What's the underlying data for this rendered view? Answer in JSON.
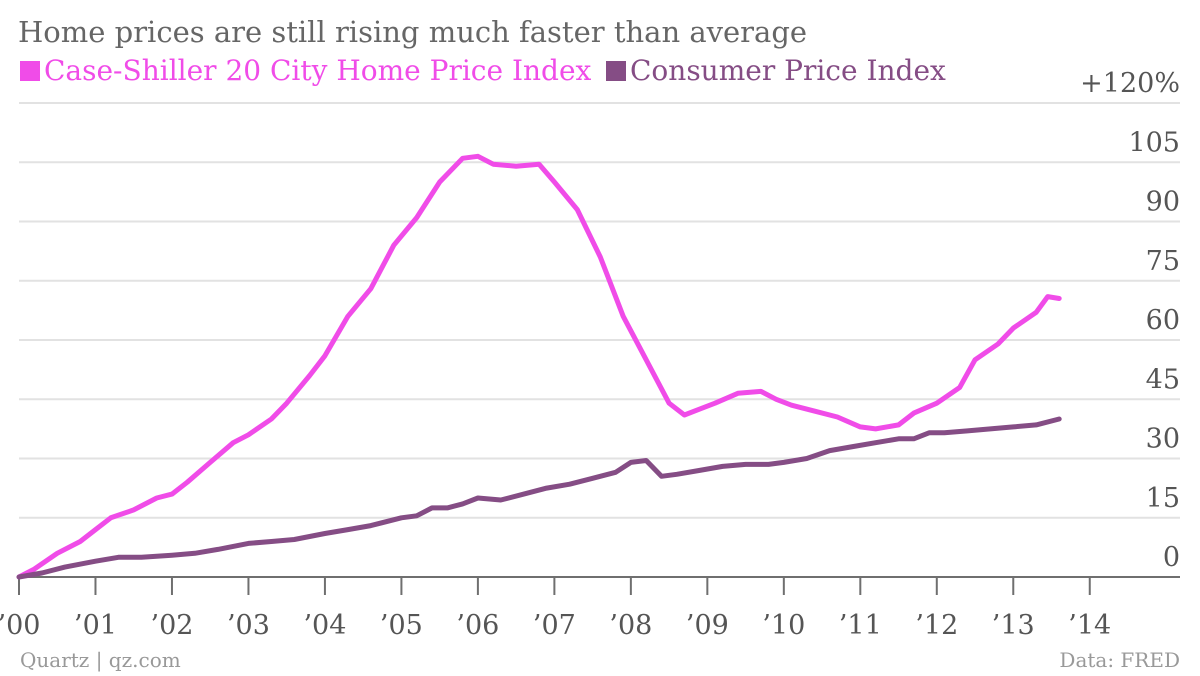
{
  "chart_data": {
    "type": "line",
    "title": "Home prices are still rising much faster than average",
    "source_left": "Quartz | qz.com",
    "source_right": "Data: FRED",
    "ylim": [
      0,
      120
    ],
    "y_ticks": [
      0,
      15,
      30,
      45,
      60,
      75,
      90,
      105,
      120
    ],
    "y_tick_labels": [
      "0",
      "15",
      "30",
      "45",
      "60",
      "75",
      "90",
      "105",
      "+120%"
    ],
    "x_ticks": [
      2000,
      2001,
      2002,
      2003,
      2004,
      2005,
      2006,
      2007,
      2008,
      2009,
      2010,
      2011,
      2012,
      2013,
      2014
    ],
    "x_tick_labels": [
      "’00",
      "’01",
      "’02",
      "’03",
      "’04",
      "’05",
      "’06",
      "’07",
      "’08",
      "’09",
      "’10",
      "’11",
      "’12",
      "’13",
      "’14"
    ],
    "xlim": [
      2000,
      2014.5
    ],
    "grid": true,
    "legend_position": "top-left",
    "series": [
      {
        "name": "Case-Shiller 20 City Home Price Index",
        "color": "#f04ce8",
        "points": [
          [
            2000.0,
            0
          ],
          [
            2000.2,
            2
          ],
          [
            2000.5,
            6
          ],
          [
            2000.8,
            9
          ],
          [
            2001.0,
            12
          ],
          [
            2001.2,
            15
          ],
          [
            2001.5,
            17
          ],
          [
            2001.8,
            20
          ],
          [
            2002.0,
            21
          ],
          [
            2002.2,
            24
          ],
          [
            2002.5,
            29
          ],
          [
            2002.8,
            34
          ],
          [
            2003.0,
            36
          ],
          [
            2003.3,
            40
          ],
          [
            2003.5,
            44
          ],
          [
            2003.8,
            51
          ],
          [
            2004.0,
            56
          ],
          [
            2004.3,
            66
          ],
          [
            2004.6,
            73
          ],
          [
            2004.9,
            84
          ],
          [
            2005.2,
            91
          ],
          [
            2005.5,
            100
          ],
          [
            2005.8,
            106
          ],
          [
            2006.0,
            106.5
          ],
          [
            2006.2,
            104.5
          ],
          [
            2006.5,
            104
          ],
          [
            2006.8,
            104.5
          ],
          [
            2007.0,
            100
          ],
          [
            2007.3,
            93
          ],
          [
            2007.6,
            81
          ],
          [
            2007.9,
            66
          ],
          [
            2008.2,
            55
          ],
          [
            2008.5,
            44
          ],
          [
            2008.7,
            41
          ],
          [
            2008.9,
            42.5
          ],
          [
            2009.1,
            44
          ],
          [
            2009.4,
            46.5
          ],
          [
            2009.7,
            47
          ],
          [
            2009.9,
            45
          ],
          [
            2010.1,
            43.5
          ],
          [
            2010.4,
            42
          ],
          [
            2010.7,
            40.5
          ],
          [
            2011.0,
            38
          ],
          [
            2011.2,
            37.5
          ],
          [
            2011.5,
            38.5
          ],
          [
            2011.7,
            41.5
          ],
          [
            2012.0,
            44
          ],
          [
            2012.3,
            48
          ],
          [
            2012.5,
            55
          ],
          [
            2012.8,
            59
          ],
          [
            2013.0,
            63
          ],
          [
            2013.3,
            67
          ],
          [
            2013.45,
            71
          ],
          [
            2013.6,
            70.5
          ]
        ]
      },
      {
        "name": "Consumer Price Index",
        "color": "#854d85",
        "points": [
          [
            2000.0,
            0
          ],
          [
            2000.3,
            1
          ],
          [
            2000.6,
            2.5
          ],
          [
            2001.0,
            4
          ],
          [
            2001.3,
            5
          ],
          [
            2001.6,
            5
          ],
          [
            2002.0,
            5.5
          ],
          [
            2002.3,
            6
          ],
          [
            2002.6,
            7
          ],
          [
            2003.0,
            8.5
          ],
          [
            2003.3,
            9
          ],
          [
            2003.6,
            9.5
          ],
          [
            2004.0,
            11
          ],
          [
            2004.3,
            12
          ],
          [
            2004.6,
            13
          ],
          [
            2005.0,
            15
          ],
          [
            2005.2,
            15.5
          ],
          [
            2005.4,
            17.5
          ],
          [
            2005.6,
            17.5
          ],
          [
            2005.8,
            18.5
          ],
          [
            2006.0,
            20
          ],
          [
            2006.3,
            19.5
          ],
          [
            2006.6,
            21
          ],
          [
            2006.9,
            22.5
          ],
          [
            2007.2,
            23.5
          ],
          [
            2007.5,
            25
          ],
          [
            2007.8,
            26.5
          ],
          [
            2008.0,
            29
          ],
          [
            2008.2,
            29.5
          ],
          [
            2008.4,
            25.5
          ],
          [
            2008.6,
            26
          ],
          [
            2008.9,
            27
          ],
          [
            2009.2,
            28
          ],
          [
            2009.5,
            28.5
          ],
          [
            2009.8,
            28.5
          ],
          [
            2010.0,
            29
          ],
          [
            2010.3,
            30
          ],
          [
            2010.6,
            32
          ],
          [
            2010.9,
            33
          ],
          [
            2011.2,
            34
          ],
          [
            2011.5,
            35
          ],
          [
            2011.7,
            35
          ],
          [
            2011.9,
            36.5
          ],
          [
            2012.1,
            36.5
          ],
          [
            2012.4,
            37
          ],
          [
            2012.7,
            37.5
          ],
          [
            2013.0,
            38
          ],
          [
            2013.3,
            38.5
          ],
          [
            2013.6,
            40
          ]
        ]
      }
    ]
  }
}
